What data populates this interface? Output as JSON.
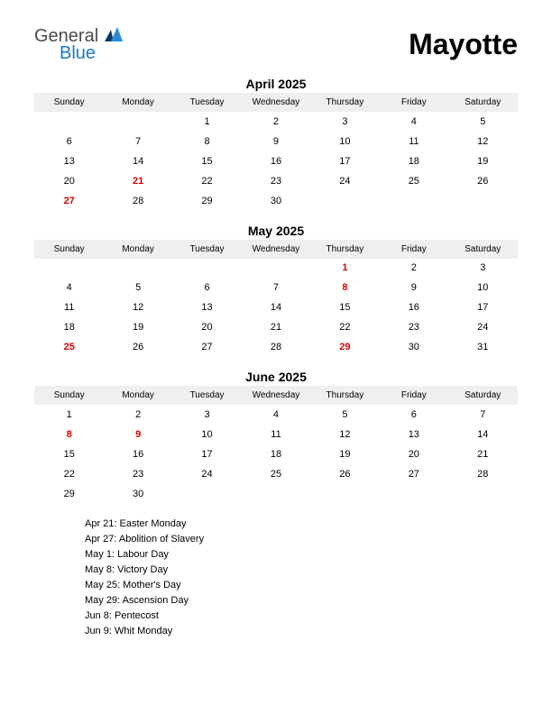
{
  "logo": {
    "general": "General",
    "blue": "Blue"
  },
  "title": "Mayotte",
  "day_headers": [
    "Sunday",
    "Monday",
    "Tuesday",
    "Wednesday",
    "Thursday",
    "Friday",
    "Saturday"
  ],
  "colors": {
    "header_bg": "#efefef",
    "holiday_text": "#d40000",
    "logo_gray": "#4a4a4a",
    "logo_blue": "#1a7bc4",
    "logo_tri_dark": "#0d3b66",
    "logo_tri_light": "#2b8cd6"
  },
  "months": [
    {
      "title": "April 2025",
      "weeks": [
        [
          {
            "d": ""
          },
          {
            "d": ""
          },
          {
            "d": "1"
          },
          {
            "d": "2"
          },
          {
            "d": "3"
          },
          {
            "d": "4"
          },
          {
            "d": "5"
          }
        ],
        [
          {
            "d": "6"
          },
          {
            "d": "7"
          },
          {
            "d": "8"
          },
          {
            "d": "9"
          },
          {
            "d": "10"
          },
          {
            "d": "11"
          },
          {
            "d": "12"
          }
        ],
        [
          {
            "d": "13"
          },
          {
            "d": "14"
          },
          {
            "d": "15"
          },
          {
            "d": "16"
          },
          {
            "d": "17"
          },
          {
            "d": "18"
          },
          {
            "d": "19"
          }
        ],
        [
          {
            "d": "20"
          },
          {
            "d": "21",
            "h": true
          },
          {
            "d": "22"
          },
          {
            "d": "23"
          },
          {
            "d": "24"
          },
          {
            "d": "25"
          },
          {
            "d": "26"
          }
        ],
        [
          {
            "d": "27",
            "h": true
          },
          {
            "d": "28"
          },
          {
            "d": "29"
          },
          {
            "d": "30"
          },
          {
            "d": ""
          },
          {
            "d": ""
          },
          {
            "d": ""
          }
        ]
      ]
    },
    {
      "title": "May 2025",
      "weeks": [
        [
          {
            "d": ""
          },
          {
            "d": ""
          },
          {
            "d": ""
          },
          {
            "d": ""
          },
          {
            "d": "1",
            "h": true
          },
          {
            "d": "2"
          },
          {
            "d": "3"
          }
        ],
        [
          {
            "d": "4"
          },
          {
            "d": "5"
          },
          {
            "d": "6"
          },
          {
            "d": "7"
          },
          {
            "d": "8",
            "h": true
          },
          {
            "d": "9"
          },
          {
            "d": "10"
          }
        ],
        [
          {
            "d": "11"
          },
          {
            "d": "12"
          },
          {
            "d": "13"
          },
          {
            "d": "14"
          },
          {
            "d": "15"
          },
          {
            "d": "16"
          },
          {
            "d": "17"
          }
        ],
        [
          {
            "d": "18"
          },
          {
            "d": "19"
          },
          {
            "d": "20"
          },
          {
            "d": "21"
          },
          {
            "d": "22"
          },
          {
            "d": "23"
          },
          {
            "d": "24"
          }
        ],
        [
          {
            "d": "25",
            "h": true
          },
          {
            "d": "26"
          },
          {
            "d": "27"
          },
          {
            "d": "28"
          },
          {
            "d": "29",
            "h": true
          },
          {
            "d": "30"
          },
          {
            "d": "31"
          }
        ]
      ]
    },
    {
      "title": "June 2025",
      "weeks": [
        [
          {
            "d": "1"
          },
          {
            "d": "2"
          },
          {
            "d": "3"
          },
          {
            "d": "4"
          },
          {
            "d": "5"
          },
          {
            "d": "6"
          },
          {
            "d": "7"
          }
        ],
        [
          {
            "d": "8",
            "h": true
          },
          {
            "d": "9",
            "h": true
          },
          {
            "d": "10"
          },
          {
            "d": "11"
          },
          {
            "d": "12"
          },
          {
            "d": "13"
          },
          {
            "d": "14"
          }
        ],
        [
          {
            "d": "15"
          },
          {
            "d": "16"
          },
          {
            "d": "17"
          },
          {
            "d": "18"
          },
          {
            "d": "19"
          },
          {
            "d": "20"
          },
          {
            "d": "21"
          }
        ],
        [
          {
            "d": "22"
          },
          {
            "d": "23"
          },
          {
            "d": "24"
          },
          {
            "d": "25"
          },
          {
            "d": "26"
          },
          {
            "d": "27"
          },
          {
            "d": "28"
          }
        ],
        [
          {
            "d": "29"
          },
          {
            "d": "30"
          },
          {
            "d": ""
          },
          {
            "d": ""
          },
          {
            "d": ""
          },
          {
            "d": ""
          },
          {
            "d": ""
          }
        ]
      ]
    }
  ],
  "holidays": [
    "Apr 21: Easter Monday",
    "Apr 27: Abolition of Slavery",
    "May 1: Labour Day",
    "May 8: Victory Day",
    "May 25: Mother's Day",
    "May 29: Ascension Day",
    "Jun 8: Pentecost",
    "Jun 9: Whit Monday"
  ]
}
